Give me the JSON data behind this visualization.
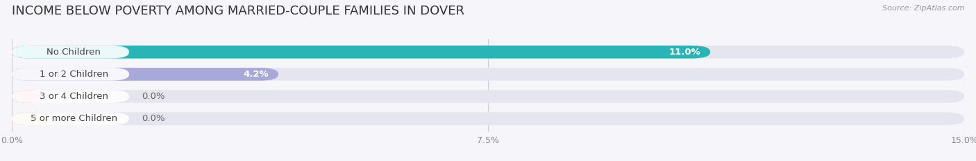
{
  "title": "INCOME BELOW POVERTY AMONG MARRIED-COUPLE FAMILIES IN DOVER",
  "source": "Source: ZipAtlas.com",
  "categories": [
    "No Children",
    "1 or 2 Children",
    "3 or 4 Children",
    "5 or more Children"
  ],
  "values": [
    11.0,
    4.2,
    0.0,
    0.0
  ],
  "bar_colors": [
    "#29b5b5",
    "#a9a9d9",
    "#f49fb0",
    "#f5c98a"
  ],
  "xlim": [
    0,
    15.0
  ],
  "xticks": [
    0.0,
    7.5,
    15.0
  ],
  "xtick_labels": [
    "0.0%",
    "7.5%",
    "15.0%"
  ],
  "bg_color": "#f5f5fa",
  "bar_bg_color": "#e5e5ef",
  "title_fontsize": 13,
  "label_fontsize": 9.5,
  "value_fontsize": 9.5,
  "figsize": [
    14.06,
    2.33
  ],
  "dpi": 100
}
